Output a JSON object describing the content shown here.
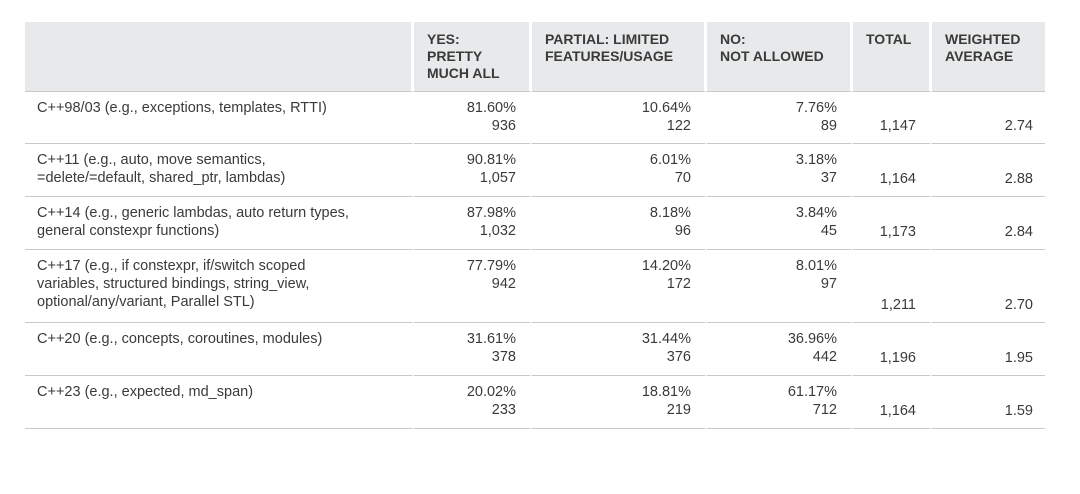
{
  "headers": [
    "",
    "YES: PRETTY MUCH ALL",
    "PARTIAL: LIMITED FEATURES/USAGE",
    "NO: NOT ALLOWED",
    "TOTAL",
    "WEIGHTED AVERAGE"
  ],
  "header_lines": {
    "yes": [
      "YES:",
      "PRETTY",
      "MUCH ALL"
    ],
    "partial": [
      "PARTIAL: LIMITED",
      "FEATURES/USAGE"
    ],
    "no": [
      "NO:",
      "NOT ALLOWED"
    ],
    "total": [
      "TOTAL"
    ],
    "weighted": [
      "WEIGHTED",
      "AVERAGE"
    ]
  },
  "rows": [
    {
      "label_lines": [
        "C++98/03 (e.g., exceptions, templates, RTTI)"
      ],
      "yes_pct": "81.60%",
      "yes_cnt": "936",
      "partial_pct": "10.64%",
      "partial_cnt": "122",
      "no_pct": "7.76%",
      "no_cnt": "89",
      "total": "1,147",
      "weighted": "2.74"
    },
    {
      "label_lines": [
        "C++11 (e.g., auto, move semantics,",
        "=delete/=default, shared_ptr, lambdas)"
      ],
      "yes_pct": "90.81%",
      "yes_cnt": "1,057",
      "partial_pct": "6.01%",
      "partial_cnt": "70",
      "no_pct": "3.18%",
      "no_cnt": "37",
      "total": "1,164",
      "weighted": "2.88"
    },
    {
      "label_lines": [
        "C++14 (e.g., generic lambdas, auto return types,",
        "general constexpr functions)"
      ],
      "yes_pct": "87.98%",
      "yes_cnt": "1,032",
      "partial_pct": "8.18%",
      "partial_cnt": "96",
      "no_pct": "3.84%",
      "no_cnt": "45",
      "total": "1,173",
      "weighted": "2.84"
    },
    {
      "label_lines": [
        "C++17 (e.g., if constexpr, if/switch scoped",
        "variables, structured bindings, string_view,",
        "optional/any/variant, Parallel STL)"
      ],
      "yes_pct": "77.79%",
      "yes_cnt": "942",
      "partial_pct": "14.20%",
      "partial_cnt": "172",
      "no_pct": "8.01%",
      "no_cnt": "97",
      "total": "1,211",
      "weighted": "2.70"
    },
    {
      "label_lines": [
        "C++20 (e.g., concepts, coroutines, modules)"
      ],
      "yes_pct": "31.61%",
      "yes_cnt": "378",
      "partial_pct": "31.44%",
      "partial_cnt": "376",
      "no_pct": "36.96%",
      "no_cnt": "442",
      "total": "1,196",
      "weighted": "1.95"
    },
    {
      "label_lines": [
        "C++23 (e.g., expected, md_span)"
      ],
      "yes_pct": "20.02%",
      "yes_cnt": "233",
      "partial_pct": "18.81%",
      "partial_cnt": "219",
      "no_pct": "61.17%",
      "no_cnt": "712",
      "total": "1,164",
      "weighted": "1.59"
    }
  ],
  "colors": {
    "header_bg": "#e8e9ea",
    "text": "#3a3a3a",
    "rule": "#c9c9c9"
  }
}
